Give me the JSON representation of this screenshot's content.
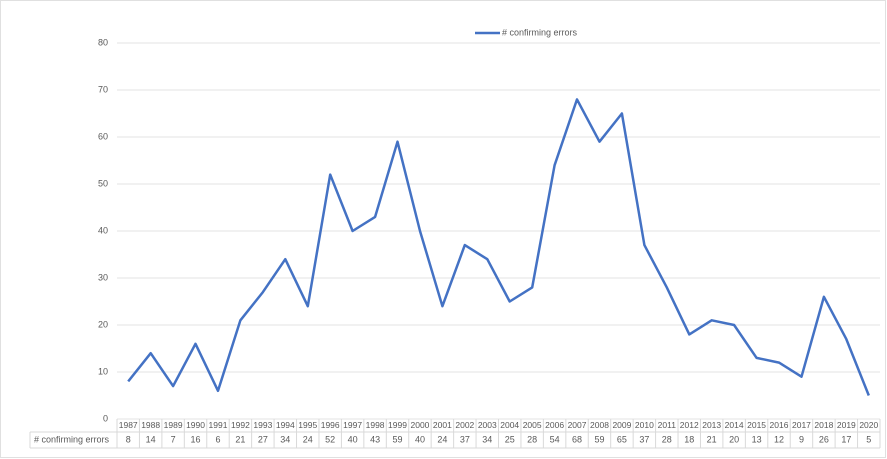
{
  "chart_data": {
    "type": "line",
    "categories": [
      "1987",
      "1988",
      "1989",
      "1990",
      "1991",
      "1992",
      "1993",
      "1994",
      "1995",
      "1996",
      "1997",
      "1998",
      "1999",
      "2000",
      "2001",
      "2002",
      "2003",
      "2004",
      "2005",
      "2006",
      "2007",
      "2008",
      "2009",
      "2010",
      "2011",
      "2012",
      "2013",
      "2014",
      "2015",
      "2016",
      "2017",
      "2018",
      "2019",
      "2020"
    ],
    "series": [
      {
        "name": "# confirming errors",
        "color": "#4472c4",
        "values": [
          8,
          14,
          7,
          16,
          6,
          21,
          27,
          34,
          24,
          52,
          40,
          43,
          59,
          40,
          24,
          37,
          34,
          25,
          28,
          54,
          68,
          59,
          65,
          37,
          28,
          18,
          21,
          20,
          13,
          12,
          9,
          26,
          17,
          5
        ]
      }
    ],
    "ylim": [
      0,
      80
    ],
    "yticks": [
      0,
      10,
      20,
      30,
      40,
      50,
      60,
      70,
      80
    ],
    "grid": true,
    "legend": "top",
    "data_table": true
  }
}
